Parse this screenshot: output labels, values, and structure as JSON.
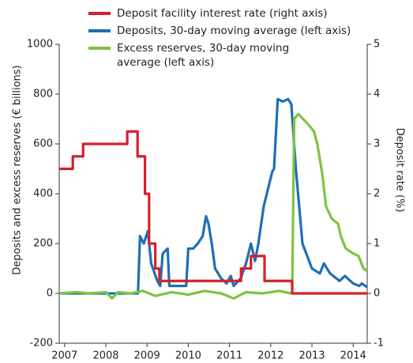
{
  "chart_data": {
    "type": "line",
    "y_label": "Deposits and excess reserves (€ billions)",
    "y2_label": "Deposit rate (%)",
    "xlim": [
      2006.87,
      2014.34
    ],
    "xticks": [
      2007,
      2008,
      2009,
      2010,
      2011,
      2012,
      2013,
      2014
    ],
    "ylim": [
      -200,
      1000
    ],
    "yticks": [
      1000,
      800,
      600,
      400,
      200,
      0,
      -200
    ],
    "y2lim": [
      -1,
      5
    ],
    "y2ticks": [
      5,
      4,
      3,
      2,
      1,
      0,
      -1
    ],
    "series": [
      {
        "name": "Deposit facility interest rate (right axis)",
        "color": "#d6202e",
        "axis": "y2",
        "x": [
          2006.87,
          2007.2,
          2007.2,
          2007.45,
          2007.45,
          2008.52,
          2008.52,
          2008.77,
          2008.77,
          2008.95,
          2008.95,
          2009.05,
          2009.05,
          2009.2,
          2009.2,
          2009.3,
          2009.3,
          2011.28,
          2011.28,
          2011.52,
          2011.52,
          2011.85,
          2011.85,
          2012.52,
          2012.52,
          2014.34
        ],
        "values": [
          2.5,
          2.5,
          2.75,
          2.75,
          3.0,
          3.0,
          3.25,
          3.25,
          2.75,
          2.75,
          2.0,
          2.0,
          1.0,
          1.0,
          0.5,
          0.5,
          0.25,
          0.25,
          0.5,
          0.5,
          0.75,
          0.75,
          0.25,
          0.25,
          0,
          0
        ]
      },
      {
        "name": "Deposits, 30-day moving average (left axis)",
        "color": "#1f6fb5",
        "x": [
          2006.87,
          2007.5,
          2008.0,
          2008.5,
          2008.78,
          2008.83,
          2008.92,
          2009.02,
          2009.1,
          2009.25,
          2009.32,
          2009.38,
          2009.5,
          2009.54,
          2009.7,
          2009.95,
          2010.0,
          2010.12,
          2010.23,
          2010.35,
          2010.43,
          2010.49,
          2010.57,
          2010.65,
          2010.8,
          2010.93,
          2011.03,
          2011.1,
          2011.27,
          2011.4,
          2011.52,
          2011.62,
          2011.7,
          2011.83,
          2011.95,
          2012.04,
          2012.08,
          2012.17,
          2012.29,
          2012.42,
          2012.5,
          2012.61,
          2012.77,
          2013.0,
          2013.19,
          2013.29,
          2013.44,
          2013.67,
          2013.8,
          2014.0,
          2014.15,
          2014.21,
          2014.34
        ],
        "values": [
          0,
          0,
          0,
          0,
          0,
          230,
          200,
          250,
          120,
          50,
          30,
          160,
          180,
          30,
          30,
          30,
          180,
          180,
          200,
          230,
          310,
          280,
          200,
          100,
          60,
          40,
          70,
          30,
          60,
          120,
          200,
          130,
          200,
          350,
          430,
          490,
          500,
          780,
          770,
          780,
          760,
          500,
          200,
          100,
          80,
          120,
          80,
          50,
          70,
          40,
          30,
          40,
          25
        ]
      },
      {
        "name": "Excess reserves, 30-day moving average (left axis)",
        "color": "#7fc241",
        "x": [
          2006.87,
          2007.3,
          2007.6,
          2008.0,
          2008.15,
          2008.3,
          2008.6,
          2008.9,
          2009.2,
          2009.6,
          2010.0,
          2010.4,
          2010.8,
          2011.1,
          2011.4,
          2011.8,
          2012.2,
          2012.5,
          2012.52,
          2012.57,
          2012.67,
          2012.9,
          2013.05,
          2013.13,
          2013.25,
          2013.34,
          2013.48,
          2013.63,
          2013.7,
          2013.82,
          2014.0,
          2014.13,
          2014.25,
          2014.34
        ],
        "values": [
          0,
          5,
          0,
          5,
          -20,
          5,
          0,
          10,
          -10,
          5,
          -5,
          10,
          0,
          -20,
          5,
          0,
          10,
          0,
          0,
          700,
          720,
          680,
          650,
          600,
          480,
          350,
          300,
          280,
          230,
          180,
          160,
          150,
          100,
          90
        ]
      }
    ]
  }
}
